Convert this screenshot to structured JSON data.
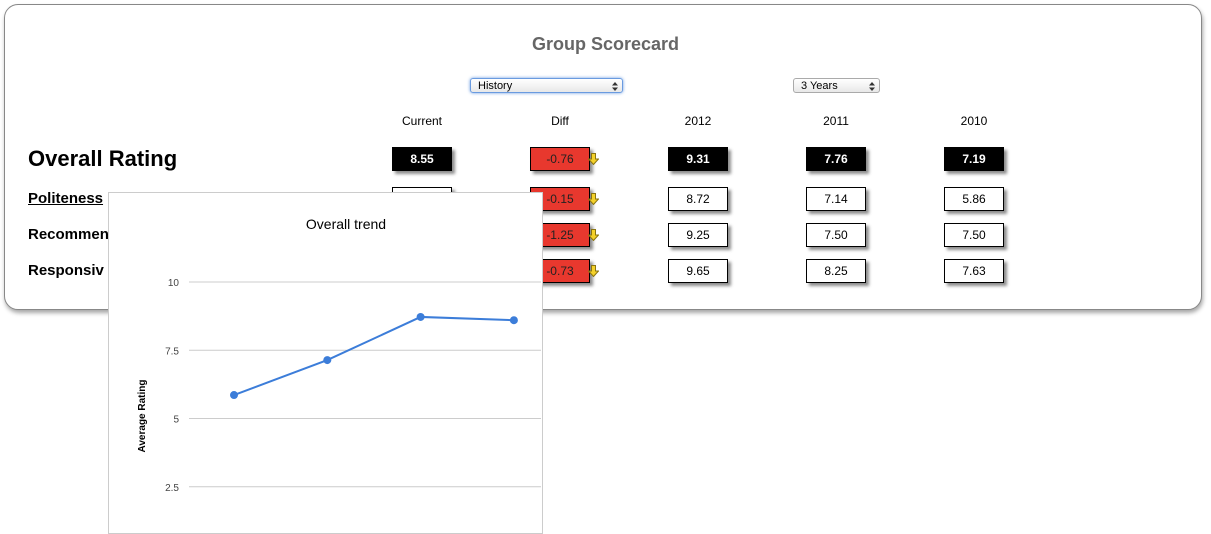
{
  "header": {
    "title": "Group Scorecard"
  },
  "controls": {
    "view": "History",
    "range": "3 Years"
  },
  "table": {
    "columns": [
      "Current",
      "Diff",
      "2012",
      "2011",
      "2010"
    ],
    "rows": [
      {
        "label": "Overall Rating",
        "cells": [
          "8.55",
          "-0.76",
          "9.31",
          "7.76",
          "7.19"
        ]
      },
      {
        "label": "Politeness",
        "cells": [
          null,
          "-0.15",
          "8.72",
          "7.14",
          "5.86"
        ]
      },
      {
        "label": "Recommen",
        "cells": [
          null,
          "-1.25",
          "9.25",
          "7.50",
          "7.50"
        ]
      },
      {
        "label": "Responsiv",
        "cells": [
          null,
          "-0.73",
          "9.65",
          "8.25",
          "7.63"
        ]
      }
    ]
  },
  "chart_data": {
    "type": "line",
    "title": "Overall trend",
    "y_label": "Average Rating",
    "categories": [
      null,
      null,
      null,
      null
    ],
    "values": [
      5.86,
      7.14,
      8.72,
      8.6
    ],
    "color": "#3c7dd9",
    "ylim": [
      0,
      10
    ],
    "yticks": [
      2.5,
      5,
      7.5,
      10
    ],
    "grid": true
  }
}
